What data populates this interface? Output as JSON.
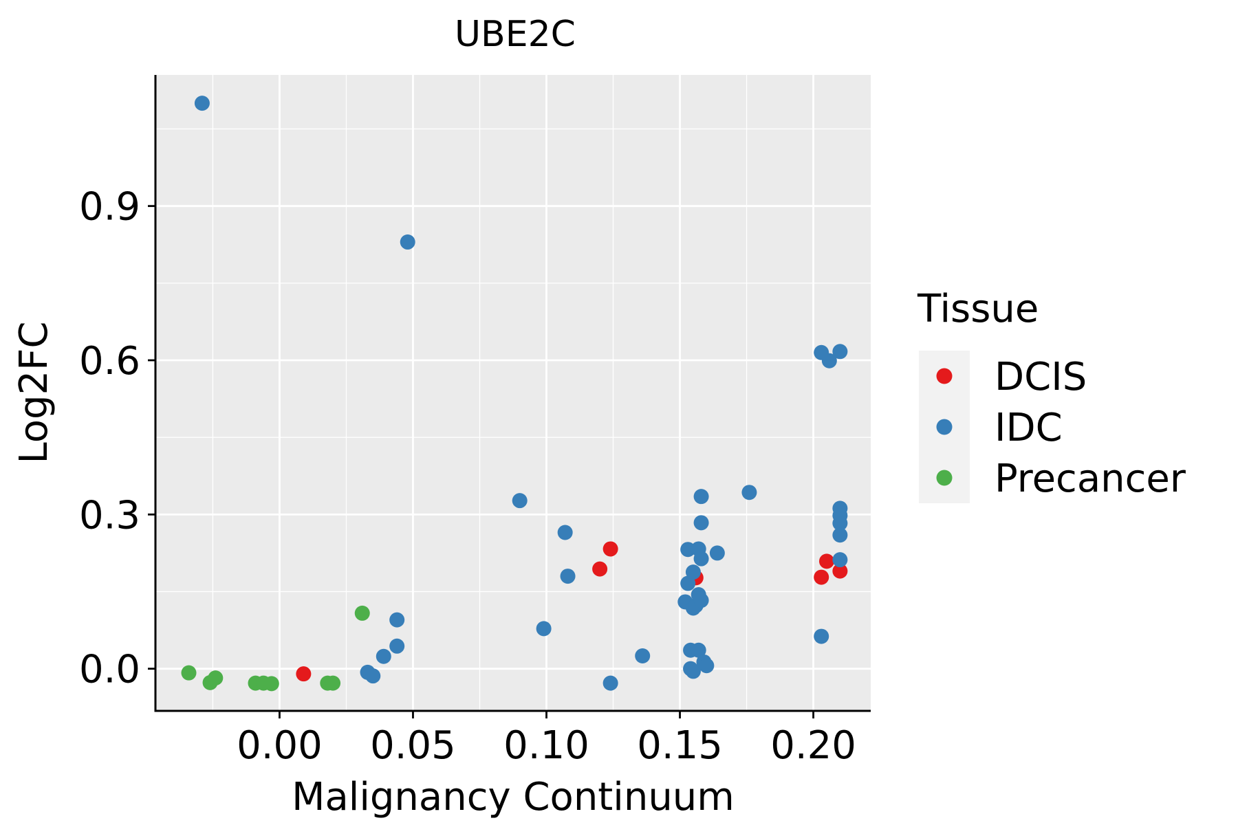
{
  "chart_data": {
    "type": "scatter",
    "title": "UBE2C",
    "xlabel": "Malignancy Continuum",
    "ylabel": "Log2FC",
    "xlim": [
      -0.0465,
      0.2215
    ],
    "ylim": [
      -0.082,
      1.155
    ],
    "x_ticks": [
      0.0,
      0.05,
      0.1,
      0.15,
      0.2
    ],
    "x_tick_labels": [
      "0.00",
      "0.05",
      "0.10",
      "0.15",
      "0.20"
    ],
    "y_ticks": [
      0.0,
      0.3,
      0.6,
      0.9
    ],
    "y_tick_labels": [
      "0.0",
      "0.3",
      "0.6",
      "0.9"
    ],
    "grid": true,
    "legend": {
      "title": "Tissue",
      "position": "right",
      "entries": [
        "DCIS",
        "IDC",
        "Precancer"
      ]
    },
    "colors": {
      "DCIS": "#e41a1c",
      "IDC": "#377eb8",
      "Precancer": "#4daf4a",
      "panel": "#ebebeb",
      "grid": "#ffffff",
      "legend_key": "#f2f2f2"
    },
    "series": [
      {
        "name": "DCIS",
        "points": [
          [
            0.009,
            -0.01
          ],
          [
            0.12,
            0.194
          ],
          [
            0.124,
            0.233
          ],
          [
            0.156,
            0.177
          ],
          [
            0.203,
            0.178
          ],
          [
            0.205,
            0.209
          ],
          [
            0.21,
            0.19
          ]
        ]
      },
      {
        "name": "IDC",
        "points": [
          [
            -0.029,
            1.1
          ],
          [
            0.048,
            0.83
          ],
          [
            0.033,
            -0.007
          ],
          [
            0.035,
            -0.014
          ],
          [
            0.039,
            0.024
          ],
          [
            0.044,
            0.095
          ],
          [
            0.044,
            0.044
          ],
          [
            0.09,
            0.327
          ],
          [
            0.099,
            0.078
          ],
          [
            0.107,
            0.265
          ],
          [
            0.108,
            0.18
          ],
          [
            0.124,
            -0.028
          ],
          [
            0.136,
            0.025
          ],
          [
            0.152,
            0.13
          ],
          [
            0.153,
            0.232
          ],
          [
            0.153,
            0.166
          ],
          [
            0.154,
            0.0
          ],
          [
            0.154,
            0.036
          ],
          [
            0.155,
            -0.005
          ],
          [
            0.155,
            0.118
          ],
          [
            0.155,
            0.188
          ],
          [
            0.156,
            0.123
          ],
          [
            0.157,
            0.036
          ],
          [
            0.157,
            0.233
          ],
          [
            0.157,
            0.144
          ],
          [
            0.158,
            0.214
          ],
          [
            0.158,
            0.335
          ],
          [
            0.158,
            0.133
          ],
          [
            0.158,
            0.284
          ],
          [
            0.159,
            0.013
          ],
          [
            0.16,
            0.006
          ],
          [
            0.164,
            0.225
          ],
          [
            0.176,
            0.343
          ],
          [
            0.203,
            0.063
          ],
          [
            0.203,
            0.615
          ],
          [
            0.206,
            0.599
          ],
          [
            0.21,
            0.617
          ],
          [
            0.21,
            0.312
          ],
          [
            0.21,
            0.298
          ],
          [
            0.21,
            0.283
          ],
          [
            0.21,
            0.26
          ],
          [
            0.21,
            0.212
          ]
        ]
      },
      {
        "name": "Precancer",
        "points": [
          [
            -0.034,
            -0.008
          ],
          [
            -0.026,
            -0.027
          ],
          [
            -0.024,
            -0.018
          ],
          [
            -0.009,
            -0.028
          ],
          [
            -0.006,
            -0.028
          ],
          [
            -0.003,
            -0.029
          ],
          [
            0.018,
            -0.028
          ],
          [
            0.02,
            -0.028
          ],
          [
            0.031,
            0.108
          ]
        ]
      }
    ]
  }
}
